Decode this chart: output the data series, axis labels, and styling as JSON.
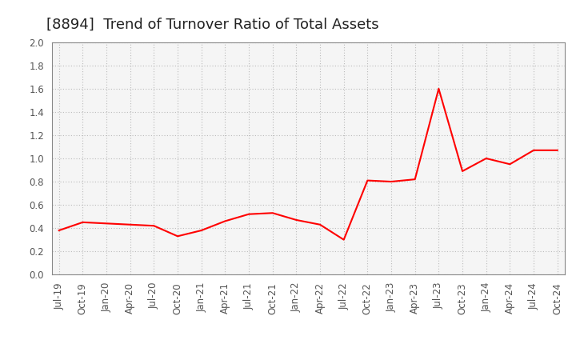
{
  "title": "[8894]  Trend of Turnover Ratio of Total Assets",
  "line_color": "#FF0000",
  "line_width": 1.5,
  "background_color": "#FFFFFF",
  "plot_bg_color": "#F5F5F5",
  "grid_color": "#BBBBBB",
  "ylim": [
    0.0,
    2.0
  ],
  "yticks": [
    0.0,
    0.2,
    0.4,
    0.6,
    0.8,
    1.0,
    1.2,
    1.4,
    1.6,
    1.8,
    2.0
  ],
  "x_labels": [
    "Jul-19",
    "Oct-19",
    "Jan-20",
    "Apr-20",
    "Jul-20",
    "Oct-20",
    "Jan-21",
    "Apr-21",
    "Jul-21",
    "Oct-21",
    "Jan-22",
    "Apr-22",
    "Jul-22",
    "Oct-22",
    "Jan-23",
    "Apr-23",
    "Jul-23",
    "Oct-23",
    "Jan-24",
    "Apr-24",
    "Jul-24",
    "Oct-24"
  ],
  "values": [
    0.38,
    0.45,
    0.44,
    0.43,
    0.42,
    0.33,
    0.38,
    0.46,
    0.52,
    0.53,
    0.47,
    0.43,
    0.3,
    0.81,
    0.8,
    0.82,
    1.6,
    0.89,
    1.0,
    0.95,
    1.07,
    1.07
  ],
  "title_fontsize": 13,
  "tick_fontsize": 8.5,
  "title_color": "#222222"
}
